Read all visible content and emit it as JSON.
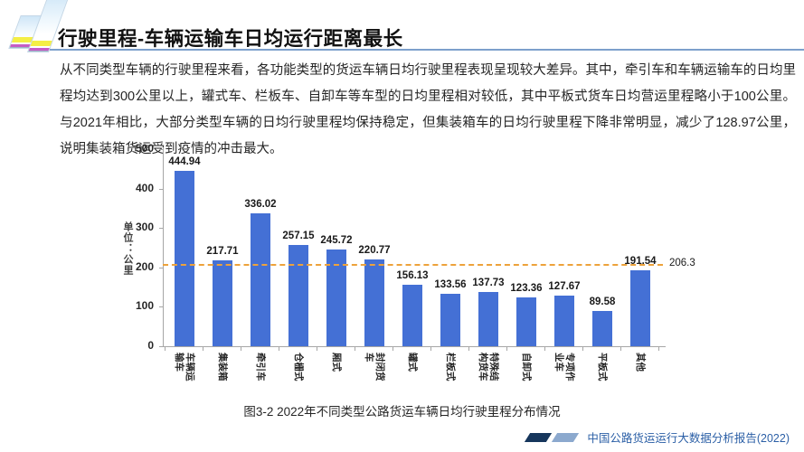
{
  "header": {
    "title": "行驶里程-车辆运输车日均运行距离最长"
  },
  "body_text": {
    "paragraph": "从不同类型车辆的行驶里程来看，各功能类型的货运车辆日均行驶里程表现呈现较大差异。其中，牵引车和车辆运输车的日均里程均达到300公里以上，罐式车、栏板车、自卸车等车型的日均里程相对较低，其中平板式货车日均营运里程略小于100公里。与2021年相比，大部分类型车辆的日均行驶里程均保持稳定，但集装箱车的日均行驶里程下降非常明显，减少了128.97公里，说明集装箱货运受到疫情的冲击最大。"
  },
  "chart_data": {
    "type": "bar",
    "title": "",
    "categories": [
      "车辆运输车",
      "集装箱",
      "牵引车",
      "仓栅式",
      "厢式",
      "封闭货车",
      "罐式",
      "栏板式",
      "特殊结构货车",
      "自卸式",
      "专项作业车",
      "平板式",
      "其他"
    ],
    "values": [
      444.94,
      217.71,
      336.02,
      257.15,
      245.72,
      220.77,
      156.13,
      133.56,
      137.73,
      123.36,
      127.67,
      89.58,
      191.54
    ],
    "xlabel": "",
    "ylabel": "单位：公里",
    "ylim": [
      0,
      500
    ],
    "yticks": [
      0,
      100,
      200,
      300,
      400,
      500
    ],
    "grid": false,
    "legend_position": "none",
    "bar_color": "#4470d5",
    "reference_line": {
      "value": 206.3,
      "label": "206.3",
      "color": "#eda23b",
      "style": "dashed"
    }
  },
  "caption": {
    "text": "图3-2 2022年不同类型公路货运车辆日均行驶里程分布情况"
  },
  "footer": {
    "text": "中国公路货运运行大数据分析报告(2022)"
  },
  "colors": {
    "bar_blue": "#4470d5",
    "dashed_orange": "#eda23b",
    "header_rule_blue": "#7da0cc",
    "footer_blue": "#2b5fa6"
  }
}
